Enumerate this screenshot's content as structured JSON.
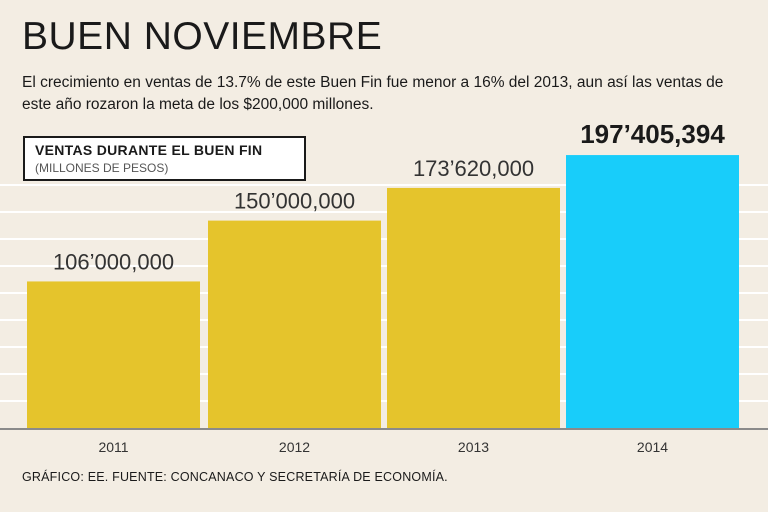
{
  "header": {
    "title": "BUEN NOVIEMBRE",
    "subtitle": "El crecimiento en ventas de 13.7% de este Buen Fin fue menor a 16% del 2013, aun así las ventas de este año rozaron la meta de los $200,000 millones."
  },
  "legend": {
    "title": "VENTAS DURANTE EL BUEN FIN",
    "subtitle": "(MILLONES DE PESOS)"
  },
  "footer": {
    "source": "GRÁFICO: EE. FUENTE: CONCANACO Y SECRETARÍA DE ECONOMÍA."
  },
  "chart_data": {
    "type": "bar",
    "title": "VENTAS DURANTE EL BUEN FIN",
    "ylabel": "(MILLONES DE PESOS)",
    "xlabel": "",
    "categories": [
      "2011",
      "2012",
      "2013",
      "2014"
    ],
    "values": [
      106000000,
      150000000,
      173620000,
      197405394
    ],
    "data_labels": [
      "106’000,000",
      "150’000,000",
      "173’620,000",
      "197’405,394"
    ],
    "highlight_index": 3,
    "ylim": [
      0,
      230000000
    ],
    "grid": true,
    "colors": {
      "bar": "#e5c42c",
      "highlight": "#18cdfa",
      "grid": "#ffffff",
      "axis": "#8a8a8a",
      "label": "#333333"
    }
  }
}
